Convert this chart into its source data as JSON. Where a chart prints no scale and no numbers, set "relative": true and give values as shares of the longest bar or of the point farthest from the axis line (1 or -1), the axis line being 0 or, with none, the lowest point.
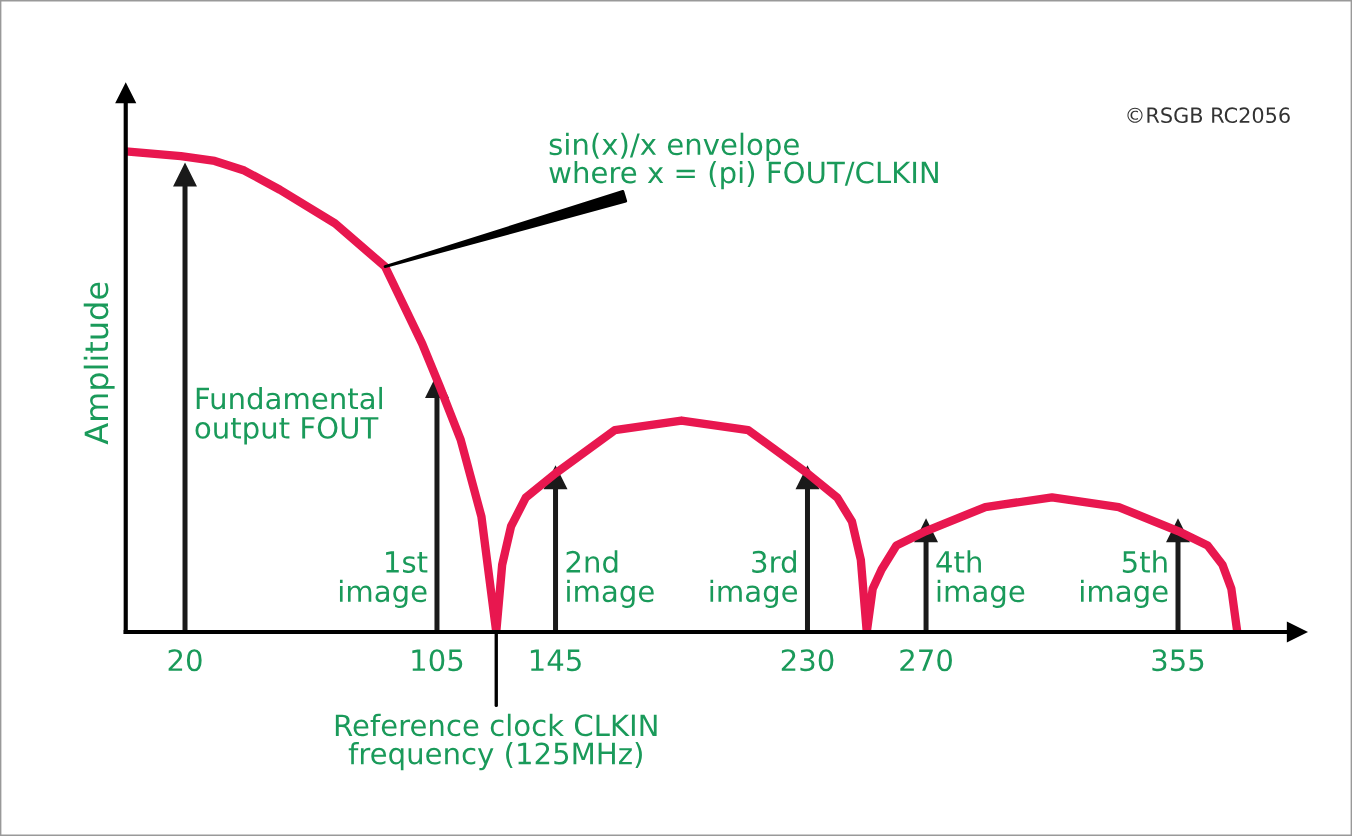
{
  "chart_data": {
    "type": "lollipop",
    "relative": true,
    "ylabel": "Amplitude",
    "x": [
      20,
      105,
      145,
      230,
      270,
      355
    ],
    "xlim": [
      0,
      395
    ],
    "xticks": [
      20,
      105,
      145,
      230,
      270,
      355
    ],
    "series": [
      {
        "color": "#1a1a1a",
        "marker": "triangle",
        "values": [
          0.95,
          0.51,
          0.32,
          0.32,
          0.21,
          0.21
        ]
      },
      {
        "type": "line",
        "color": "#e8174f",
        "x": [
          0,
          18.6,
          30,
          40,
          52,
          70.6,
          87.5,
          100,
          106,
          113,
          120,
          125,
          127,
          130,
          135,
          145,
          165,
          187.5,
          210,
          230,
          240,
          245,
          248,
          250,
          252,
          255,
          260,
          270,
          290,
          312.5,
          335,
          355,
          365,
          370,
          373,
          375
        ],
        "values": [
          1,
          0.99,
          0.98,
          0.96,
          0.92,
          0.85,
          0.76,
          0.6,
          0.51,
          0.4,
          0.24,
          0,
          0.14,
          0.22,
          0.28,
          0.33,
          0.42,
          0.44,
          0.42,
          0.33,
          0.28,
          0.23,
          0.15,
          0,
          0.09,
          0.13,
          0.18,
          0.21,
          0.26,
          0.28,
          0.26,
          0.21,
          0.18,
          0.14,
          0.09,
          0
        ]
      }
    ],
    "annotations": [
      {
        "text": "sin(x)/x envelope\nwhere x = (pi) FOUT/CLKIN",
        "x": 87.5,
        "y": 0.76
      },
      "Fundamental\noutput FOUT",
      "1st\nimage",
      "2nd\nimage",
      "3rd\nimage",
      "4th\nimage",
      "5th\nimage",
      {
        "text": "Reference clock CLKIN\nfrequency (125MHz)",
        "x": 125,
        "y": 0
      },
      "©RSGB RC2056"
    ]
  }
}
